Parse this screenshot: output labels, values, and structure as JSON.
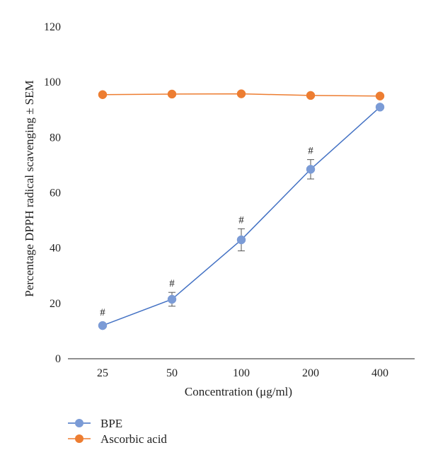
{
  "chart_data": {
    "type": "line",
    "title": "",
    "xlabel": "Concentration (μg/ml)",
    "ylabel": "Percentage DPPH radical scavenging ± SEM",
    "categories": [
      "25",
      "50",
      "100",
      "200",
      "400"
    ],
    "ylim": [
      0,
      120
    ],
    "yticks": [
      0,
      20,
      40,
      60,
      80,
      100,
      120
    ],
    "grid": false,
    "legend_position": "bottom-left",
    "series": [
      {
        "name": "BPE",
        "color": "#4472c4",
        "marker_color": "#7b9bd6",
        "values": [
          12,
          21.5,
          43,
          68.5,
          91
        ],
        "error": [
          0,
          2.5,
          4,
          3.5,
          0
        ],
        "annotations": [
          "#",
          "#",
          "#",
          "#",
          ""
        ]
      },
      {
        "name": "Ascorbic acid",
        "color": "#ed7d31",
        "marker_color": "#ed7d31",
        "values": [
          95.5,
          95.7,
          95.8,
          95.2,
          95
        ],
        "error": [
          0,
          0,
          0,
          0,
          0
        ],
        "annotations": [
          "",
          "",
          "",
          "",
          ""
        ]
      }
    ]
  }
}
